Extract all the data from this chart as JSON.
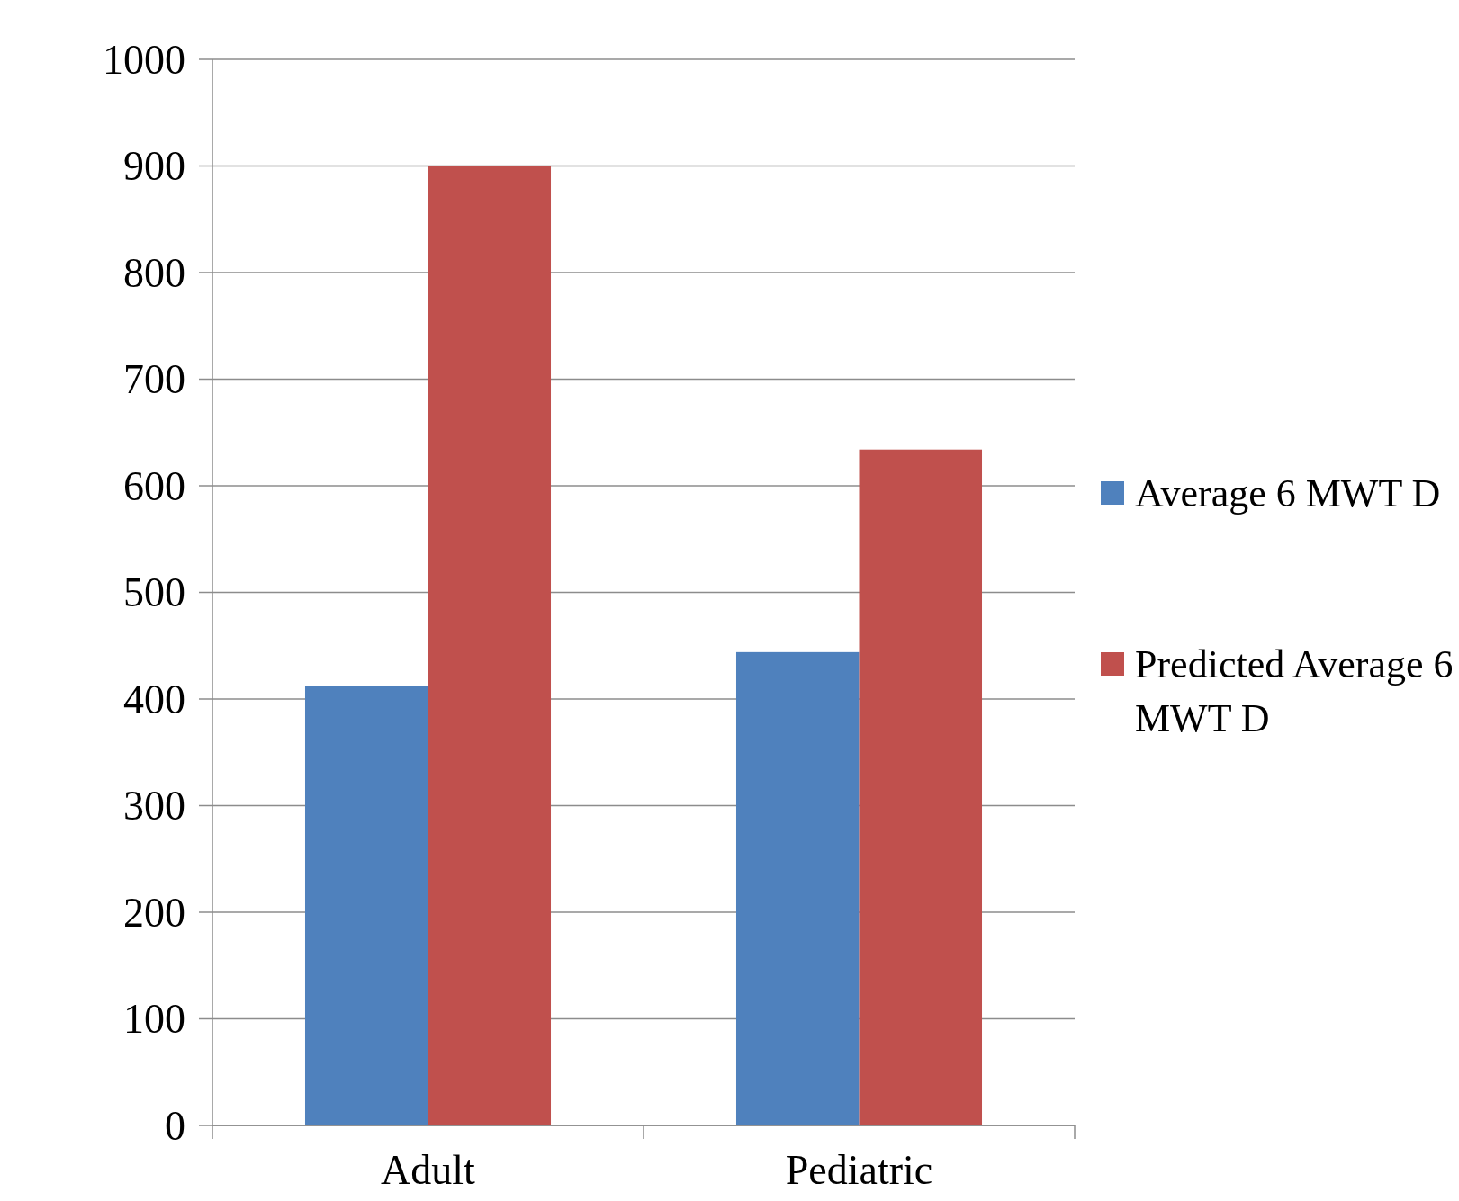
{
  "chart_data": {
    "type": "bar",
    "categories": [
      "Adult",
      "Pediatric"
    ],
    "series": [
      {
        "name": "Average 6 MWT D",
        "color": "#4f81bd",
        "values": [
          412,
          444
        ]
      },
      {
        "name": "Predicted Average 6 MWT D",
        "color": "#c0504d",
        "values": [
          900,
          634
        ]
      }
    ],
    "ylim": [
      0,
      1000
    ],
    "yticks": [
      0,
      100,
      200,
      300,
      400,
      500,
      600,
      700,
      800,
      900,
      1000
    ],
    "grid": "y",
    "legend": "right"
  }
}
